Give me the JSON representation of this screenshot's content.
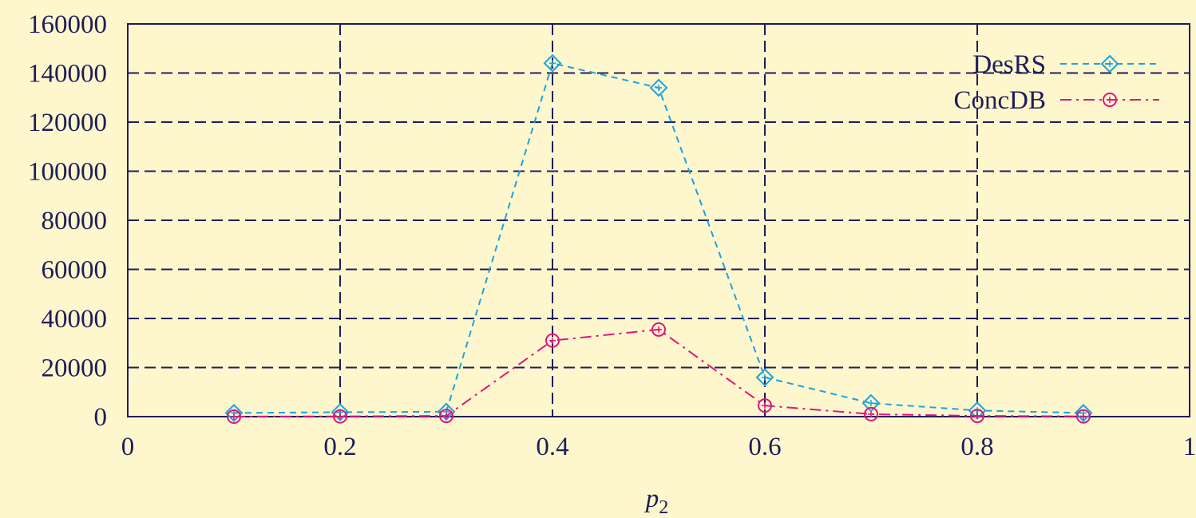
{
  "chart_data": {
    "type": "line",
    "xlabel": {
      "main": "p",
      "sub": "2"
    },
    "ylabel": "",
    "xlim": [
      0,
      1
    ],
    "ylim": [
      0,
      160000
    ],
    "xticks": [
      0,
      0.2,
      0.4,
      0.6,
      0.8,
      1
    ],
    "xtick_labels": [
      "0",
      "0.2",
      "0.4",
      "0.6",
      "0.8",
      "1"
    ],
    "yticks": [
      0,
      20000,
      40000,
      60000,
      80000,
      100000,
      120000,
      140000,
      160000
    ],
    "ytick_labels": [
      "0",
      "20000",
      "40000",
      "60000",
      "80000",
      "100000",
      "120000",
      "140000",
      "160000"
    ],
    "grid": true,
    "legend_position": "top-right",
    "series": [
      {
        "name": "DesRS",
        "color": "#1aa3dc",
        "marker": "diamond",
        "line_style": "dashed",
        "x": [
          0.1,
          0.2,
          0.3,
          0.4,
          0.5,
          0.6,
          0.7,
          0.8,
          0.9
        ],
        "y": [
          1500,
          1800,
          2000,
          144000,
          134000,
          16000,
          5500,
          2500,
          1500
        ]
      },
      {
        "name": "ConcDB",
        "color": "#e0147e",
        "marker": "circle",
        "line_style": "dash-dot",
        "x": [
          0.1,
          0.2,
          0.3,
          0.4,
          0.5,
          0.6,
          0.7,
          0.8,
          0.9
        ],
        "y": [
          0,
          100,
          300,
          31000,
          35500,
          4500,
          1000,
          300,
          100
        ]
      }
    ]
  }
}
